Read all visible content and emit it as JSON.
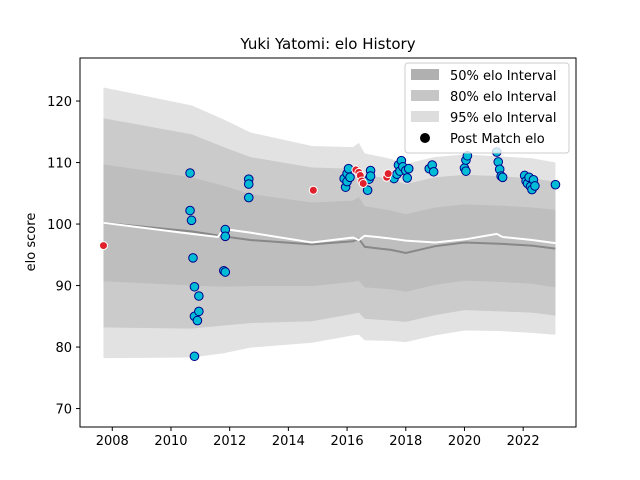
{
  "chart_data": {
    "type": "scatter",
    "title": "Yuki Yatomi: elo History",
    "ylabel": "elo score",
    "xlabel": "",
    "xlim": [
      2006.9,
      2023.8
    ],
    "ylim": [
      67,
      127
    ],
    "xticks": [
      2008,
      2010,
      2012,
      2014,
      2016,
      2018,
      2020,
      2022
    ],
    "yticks": [
      70,
      80,
      90,
      100,
      110,
      120
    ],
    "grid": false,
    "legend": {
      "placement": "top-right",
      "entries": [
        {
          "label": "50% elo Interval",
          "color": "#b0b0b0"
        },
        {
          "label": "80% elo Interval",
          "color": "#c6c6c6"
        },
        {
          "label": "95% elo Interval",
          "color": "#dddddd"
        },
        {
          "label": "Post Match elo",
          "color": "#000000"
        }
      ]
    },
    "bands": {
      "x": [
        2007.7,
        2010.7,
        2011.8,
        2012.7,
        2014.8,
        2016.2,
        2016.4,
        2016.6,
        2017.5,
        2018.0,
        2019.0,
        2020.0,
        2021.2,
        2022.3,
        2023.1
      ],
      "center": [
        100.2,
        98.8,
        98.0,
        97.4,
        96.7,
        97.2,
        97.6,
        96.3,
        95.8,
        95.3,
        96.4,
        97.0,
        96.8,
        96.5,
        96.0
      ],
      "band50": [
        9.5,
        8.8,
        8.2,
        7.5,
        6.8,
        6.6,
        6.8,
        6.6,
        6.4,
        6.3,
        6.3,
        6.2,
        6.2,
        6.2,
        6.3
      ],
      "band80": [
        17.0,
        15.8,
        14.5,
        13.5,
        12.5,
        11.8,
        12.0,
        11.7,
        11.5,
        11.2,
        11.2,
        11.0,
        11.0,
        10.9,
        10.9
      ],
      "band95": [
        22.0,
        20.5,
        19.0,
        17.5,
        16.0,
        15.3,
        15.6,
        15.2,
        14.8,
        14.5,
        14.5,
        14.3,
        14.2,
        14.2,
        14.0
      ]
    },
    "trend_white": {
      "x": [
        2007.7,
        2010.7,
        2011.6,
        2011.8,
        2012.7,
        2014.8,
        2016.2,
        2016.4,
        2016.6,
        2017.4,
        2018.0,
        2019.0,
        2020.0,
        2021.1,
        2021.3,
        2022.3,
        2023.1
      ],
      "y": [
        100.2,
        98.4,
        97.9,
        99.2,
        98.6,
        97.0,
        97.8,
        97.4,
        98.1,
        97.7,
        97.3,
        97.0,
        97.5,
        98.4,
        97.9,
        97.4,
        96.9
      ]
    },
    "series": [
      {
        "fill": "#00bcd4",
        "edge": "#00008b",
        "points": [
          [
            2010.65,
            108.3
          ],
          [
            2010.65,
            102.2
          ],
          [
            2010.7,
            100.6
          ],
          [
            2010.75,
            94.5
          ],
          [
            2010.8,
            89.8
          ],
          [
            2010.8,
            85.0
          ],
          [
            2010.8,
            78.5
          ],
          [
            2010.9,
            84.3
          ],
          [
            2010.95,
            85.8
          ],
          [
            2010.95,
            88.3
          ],
          [
            2011.8,
            92.4
          ],
          [
            2011.85,
            92.2
          ],
          [
            2011.85,
            99.1
          ],
          [
            2011.85,
            98.0
          ],
          [
            2012.65,
            107.3
          ],
          [
            2012.65,
            106.5
          ],
          [
            2012.65,
            104.3
          ],
          [
            2015.9,
            107.4
          ],
          [
            2015.95,
            106.0
          ],
          [
            2016.0,
            108.2
          ],
          [
            2016.05,
            109.0
          ],
          [
            2016.0,
            106.9
          ],
          [
            2016.1,
            107.6
          ],
          [
            2016.7,
            105.5
          ],
          [
            2016.75,
            107.3
          ],
          [
            2016.8,
            108.7
          ],
          [
            2016.8,
            107.8
          ],
          [
            2017.6,
            107.4
          ],
          [
            2017.7,
            108.1
          ],
          [
            2017.75,
            109.6
          ],
          [
            2017.8,
            108.6
          ],
          [
            2017.85,
            110.3
          ],
          [
            2017.9,
            109.3
          ],
          [
            2018.0,
            108.7
          ],
          [
            2018.05,
            107.5
          ],
          [
            2018.1,
            109.0
          ],
          [
            2018.8,
            109.0
          ],
          [
            2018.9,
            109.6
          ],
          [
            2018.95,
            108.5
          ],
          [
            2020.0,
            109.1
          ],
          [
            2020.05,
            108.6
          ],
          [
            2020.05,
            110.4
          ],
          [
            2020.1,
            111.1
          ],
          [
            2021.1,
            111.7
          ],
          [
            2021.15,
            110.1
          ],
          [
            2021.2,
            108.9
          ],
          [
            2021.25,
            107.8
          ],
          [
            2021.3,
            107.6
          ],
          [
            2022.05,
            107.9
          ],
          [
            2022.1,
            107.0
          ],
          [
            2022.15,
            106.6
          ],
          [
            2022.2,
            107.6
          ],
          [
            2022.25,
            106.1
          ],
          [
            2022.3,
            105.6
          ],
          [
            2022.35,
            107.2
          ],
          [
            2022.4,
            106.2
          ],
          [
            2023.1,
            106.4
          ]
        ]
      },
      {
        "fill": "#e0202a",
        "edge": "#ffffff",
        "points": [
          [
            2007.7,
            96.5
          ],
          [
            2014.85,
            105.5
          ],
          [
            2016.3,
            108.8
          ],
          [
            2016.4,
            108.4
          ],
          [
            2016.45,
            107.9
          ],
          [
            2016.5,
            107.0
          ],
          [
            2016.55,
            106.6
          ],
          [
            2017.35,
            107.6
          ],
          [
            2017.4,
            108.2
          ]
        ]
      }
    ]
  }
}
